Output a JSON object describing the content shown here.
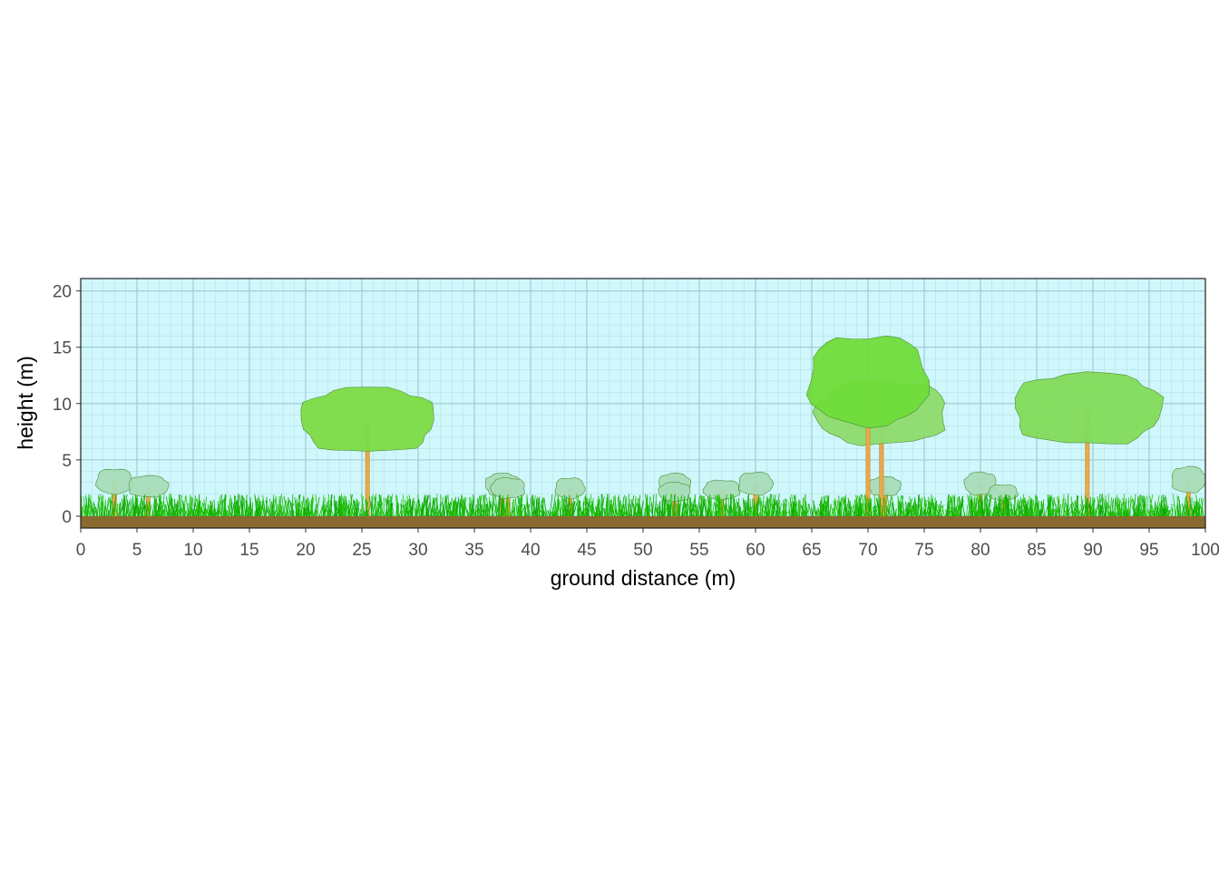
{
  "chart_data": {
    "type": "tree",
    "x_label": "ground distance (m)",
    "y_label": "height (m)",
    "xlim": [
      0,
      100
    ],
    "ylim": [
      -1.05,
      21.1
    ],
    "xticks": [
      0,
      5,
      10,
      15,
      20,
      25,
      30,
      35,
      40,
      45,
      50,
      55,
      60,
      65,
      70,
      75,
      80,
      85,
      90,
      95,
      100
    ],
    "yticks": [
      0,
      5,
      10,
      15,
      20
    ],
    "grid": true,
    "background": "#cff7fc",
    "trees": [
      {
        "x": 3,
        "height": 4.2,
        "crown_base": 2.0,
        "crown_width": 3.2,
        "color": "#a8dcb8"
      },
      {
        "x": 6,
        "height": 3.6,
        "crown_base": 1.7,
        "crown_width": 3.5,
        "color": "#a8dcb8"
      },
      {
        "x": 37.5,
        "height": 3.8,
        "crown_base": 1.8,
        "crown_width": 3.0,
        "color": "#a8dcb8"
      },
      {
        "x": 38,
        "height": 3.4,
        "crown_base": 1.6,
        "crown_width": 3.0,
        "color": "#a8dcb8"
      },
      {
        "x": 43.5,
        "height": 3.4,
        "crown_base": 1.6,
        "crown_width": 2.6,
        "color": "#a8dcb8"
      },
      {
        "x": 52.8,
        "height": 3.8,
        "crown_base": 1.9,
        "crown_width": 2.8,
        "color": "#a8dcb8"
      },
      {
        "x": 52.8,
        "height": 3.0,
        "crown_base": 1.3,
        "crown_width": 2.8,
        "color": "#a8dcb8"
      },
      {
        "x": 57,
        "height": 3.2,
        "crown_base": 1.5,
        "crown_width": 3.2,
        "color": "#a8dcb8"
      },
      {
        "x": 60,
        "height": 3.9,
        "crown_base": 1.9,
        "crown_width": 3.0,
        "color": "#a8dcb8"
      },
      {
        "x": 71.5,
        "height": 3.5,
        "crown_base": 1.8,
        "crown_width": 2.8,
        "color": "#a8dcb8"
      },
      {
        "x": 80,
        "height": 3.9,
        "crown_base": 1.9,
        "crown_width": 2.8,
        "color": "#a8dcb8"
      },
      {
        "x": 82,
        "height": 2.8,
        "crown_base": 1.4,
        "crown_width": 2.6,
        "color": "#a8dcb8"
      },
      {
        "x": 98.5,
        "height": 4.4,
        "crown_base": 2.1,
        "crown_width": 3.0,
        "color": "#a8dcb8"
      },
      {
        "x": 25.5,
        "height": 11.4,
        "crown_base": 5.7,
        "crown_width": 11.8,
        "color": "#7ddb45"
      },
      {
        "x": 71.2,
        "height": 12.0,
        "crown_base": 6.4,
        "crown_width": 11.5,
        "color": "#8ddb6d"
      },
      {
        "x": 70,
        "height": 16.0,
        "crown_base": 8.1,
        "crown_width": 10.5,
        "color": "#6fdc3a"
      },
      {
        "x": 89.5,
        "height": 12.7,
        "crown_base": 6.4,
        "crown_width": 13.0,
        "color": "#82db5a"
      }
    ]
  }
}
